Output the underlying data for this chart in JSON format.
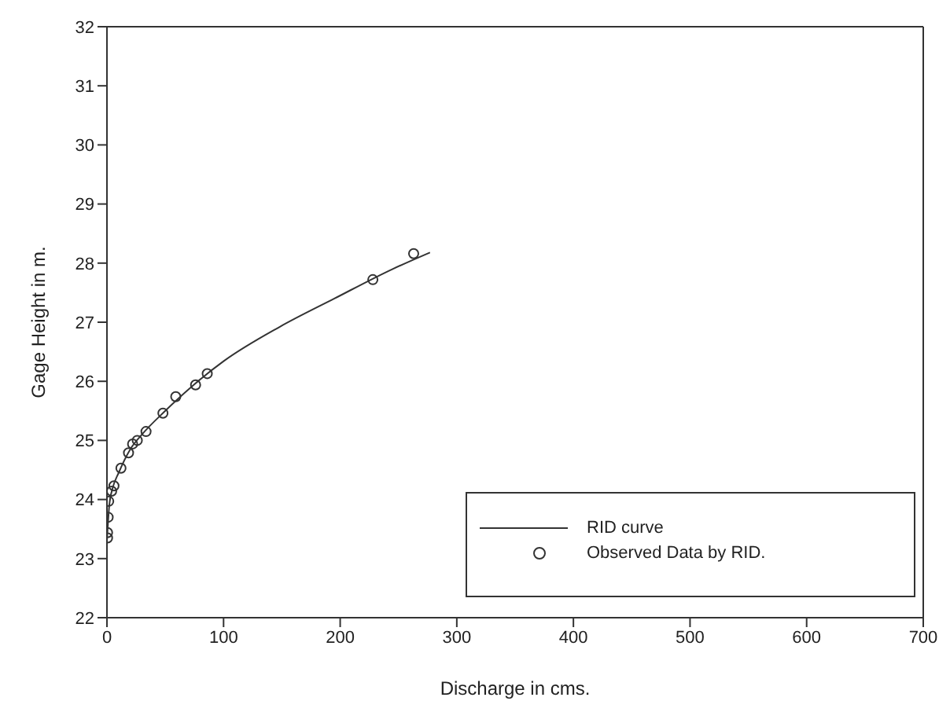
{
  "chart_data": {
    "type": "line",
    "xlabel": "Discharge in cms.",
    "ylabel": "Gage Height in m.",
    "xlim": [
      0,
      700
    ],
    "xticks": [
      0,
      100,
      200,
      300,
      400,
      500,
      600,
      700
    ],
    "ylim": [
      22,
      32
    ],
    "yticks": [
      22,
      23,
      24,
      25,
      26,
      27,
      28,
      29,
      30,
      31,
      32
    ],
    "grid": false,
    "legend": "bottom right",
    "series": [
      {
        "name": "RID curve",
        "color": "#333333",
        "marker": "none",
        "line_style": "solid",
        "x": [
          0,
          2,
          5,
          10,
          20,
          30,
          50,
          75,
          100,
          148,
          195,
          245,
          277
        ],
        "values": [
          23.3,
          23.9,
          24.2,
          24.45,
          24.85,
          25.1,
          25.5,
          25.95,
          26.34,
          26.92,
          27.4,
          27.9,
          28.18
        ]
      },
      {
        "name": "Observed Data by RID.",
        "type": "scatter",
        "color": "#333333",
        "marker": "circle",
        "x": [
          263,
          228,
          86,
          76,
          59,
          48,
          33.5,
          26,
          22,
          18.5,
          12,
          6,
          4,
          1.5,
          1,
          0.5,
          0.5
        ],
        "values": [
          28.16,
          27.72,
          26.13,
          25.94,
          25.74,
          25.46,
          25.15,
          25.0,
          24.94,
          24.79,
          24.53,
          24.23,
          24.14,
          23.97,
          23.7,
          23.44,
          23.35
        ]
      }
    ]
  }
}
